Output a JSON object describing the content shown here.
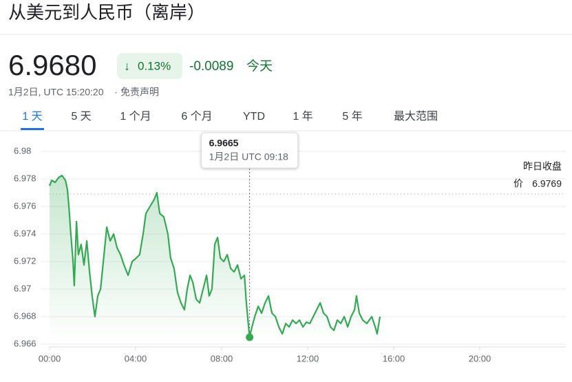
{
  "header": {
    "title": "从美元到人民币（离岸）",
    "price": "6.9680",
    "change_percent": "0.13%",
    "change": "-0.0089",
    "period": "今天",
    "timestamp": "1月2日, UTC 15:20:20",
    "separator": "·",
    "disclaimer": "免责声明"
  },
  "tabs": [
    {
      "label": "1 天",
      "selected": true
    },
    {
      "label": "5 天",
      "selected": false
    },
    {
      "label": "1 个月",
      "selected": false
    },
    {
      "label": "6 个月",
      "selected": false
    },
    {
      "label": "YTD",
      "selected": false
    },
    {
      "label": "1 年",
      "selected": false
    },
    {
      "label": "5 年",
      "selected": false
    },
    {
      "label": "最大范围",
      "selected": false
    }
  ],
  "chart_data": {
    "type": "line",
    "grid": true,
    "x": [
      0,
      0.1,
      0.26,
      0.42,
      0.58,
      0.74,
      0.83,
      0.9,
      0.99,
      1.09,
      1.15,
      1.25,
      1.34,
      1.47,
      1.6,
      1.73,
      1.86,
      1.98,
      2.11,
      2.24,
      2.37,
      2.5,
      2.66,
      2.82,
      2.98,
      3.14,
      3.3,
      3.46,
      3.65,
      3.84,
      4.03,
      4.19,
      4.35,
      4.48,
      4.67,
      4.86,
      4.99,
      5.12,
      5.31,
      5.5,
      5.63,
      5.79,
      5.95,
      6.11,
      6.27,
      6.4,
      6.53,
      6.66,
      6.82,
      6.98,
      7.14,
      7.3,
      7.42,
      7.55,
      7.68,
      7.81,
      7.94,
      8.1,
      8.26,
      8.42,
      8.58,
      8.74,
      8.9,
      9.06,
      9.15,
      9.3,
      9.41,
      9.54,
      9.7,
      9.86,
      10.02,
      10.18,
      10.34,
      10.5,
      10.66,
      10.82,
      10.98,
      11.14,
      11.3,
      11.46,
      11.62,
      11.78,
      11.94,
      12.1,
      12.26,
      12.42,
      12.58,
      12.74,
      12.9,
      13.06,
      13.22,
      13.38,
      13.54,
      13.7,
      13.86,
      14.02,
      14.18,
      14.27,
      14.4,
      14.56,
      14.75,
      14.98,
      15.14,
      15.23,
      15.36
    ],
    "series": [
      {
        "color": "#34a853",
        "values": [
          6.9775,
          6.9779,
          6.97775,
          6.9781,
          6.97825,
          6.9779,
          6.97725,
          6.976,
          6.974,
          6.972,
          6.97025,
          6.9749,
          6.9725,
          6.97325,
          6.97175,
          6.9735,
          6.97125,
          6.9695,
          6.968,
          6.9695,
          6.97,
          6.972,
          6.9745,
          6.9735,
          6.974,
          6.973,
          6.9725,
          6.97175,
          6.971,
          6.972,
          6.97225,
          6.9725,
          6.974,
          6.9755,
          6.976,
          6.9765,
          6.977,
          6.9755,
          6.97525,
          6.974,
          6.97225,
          6.9715,
          6.96975,
          6.969,
          6.9685,
          6.97,
          6.971,
          6.9705,
          6.96925,
          6.969,
          6.97,
          6.971,
          6.9695,
          6.97,
          6.97325,
          6.97375,
          6.97225,
          6.972,
          6.9725,
          6.9715,
          6.97125,
          6.97175,
          6.97075,
          6.971,
          6.969,
          6.9665,
          6.96725,
          6.968,
          6.96875,
          6.96825,
          6.969,
          6.9695,
          6.96825,
          6.968,
          6.96725,
          6.96675,
          6.9675,
          6.96725,
          6.96775,
          6.9675,
          6.96775,
          6.96725,
          6.9676,
          6.9675,
          6.968,
          6.9685,
          6.969,
          6.96825,
          6.968,
          6.96725,
          6.967,
          6.96775,
          6.9675,
          6.968,
          6.96725,
          6.968,
          6.9685,
          6.9695,
          6.96825,
          6.96775,
          6.9675,
          6.968,
          6.96725,
          6.96675,
          6.968
        ]
      }
    ],
    "xlim": [
      0,
      24
    ],
    "xticks": [
      {
        "value": 0,
        "label": "00:00"
      },
      {
        "value": 4,
        "label": "04:00"
      },
      {
        "value": 8,
        "label": "08:00"
      },
      {
        "value": 12,
        "label": "12:00"
      },
      {
        "value": 16,
        "label": "16:00"
      },
      {
        "value": 20,
        "label": "20:00"
      }
    ],
    "ylim": [
      6.966,
      6.98
    ],
    "yticks": [
      6.966,
      6.968,
      6.97,
      6.972,
      6.974,
      6.976,
      6.978,
      6.98
    ],
    "previous_close": 6.9769,
    "previous_close_label": [
      "昨日收盘",
      "价"
    ],
    "tooltip": {
      "value": 6.9665,
      "time": "1月2日 UTC 09:18"
    }
  }
}
